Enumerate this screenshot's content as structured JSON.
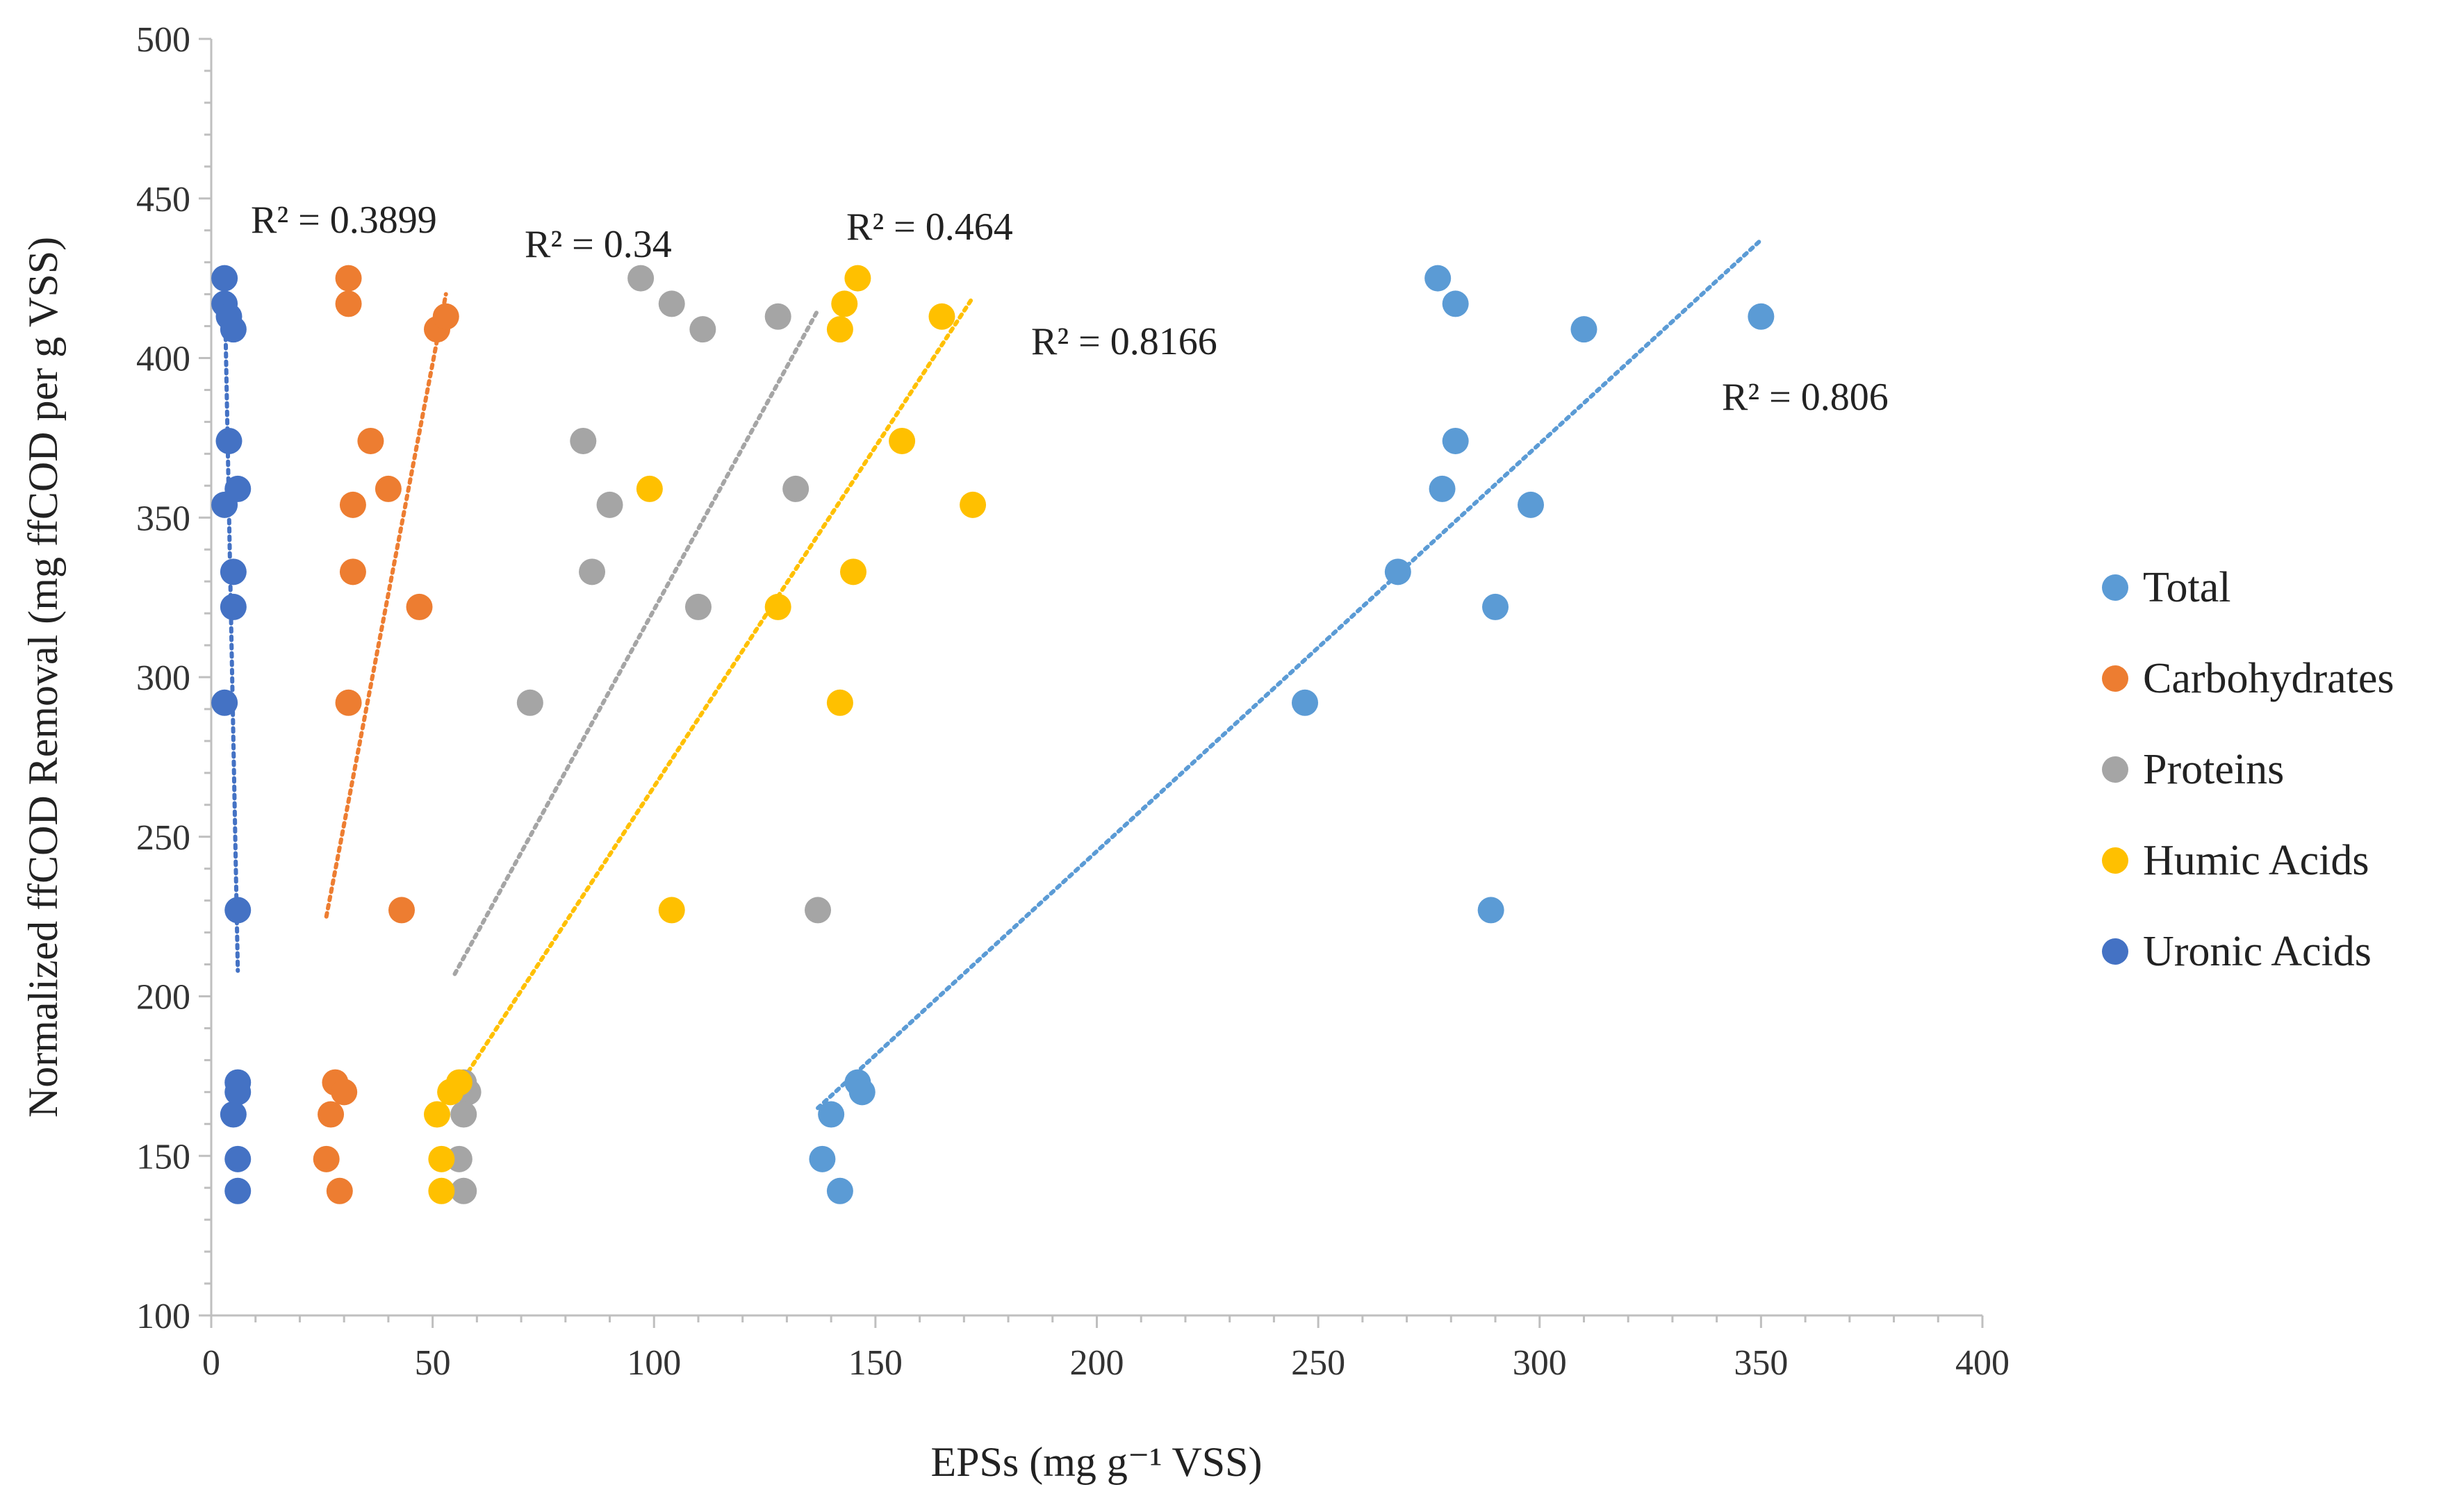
{
  "chart_data": {
    "type": "scatter",
    "title": "",
    "xlabel": "EPSs (mg g⁻¹ VSS)",
    "ylabel": "Normalized ffCOD Removal (mg ffCOD per g VSS)",
    "xlim": [
      0,
      400
    ],
    "ylim": [
      100,
      500
    ],
    "xticks": [
      "0",
      "50",
      "100",
      "150",
      "200",
      "250",
      "300",
      "350",
      "400"
    ],
    "yticks": [
      "100",
      "150",
      "200",
      "250",
      "300",
      "350",
      "400",
      "450",
      "500"
    ],
    "grid": false,
    "legend_position": "right",
    "y_values": [
      425,
      417,
      409,
      413,
      374,
      359,
      354,
      333,
      322,
      292,
      227,
      173,
      170,
      163,
      149,
      139
    ],
    "series": [
      {
        "name": "Total",
        "color": "#5B9BD5",
        "x": [
          277,
          281,
          310,
          350,
          281,
          278,
          298,
          268,
          290,
          247,
          289,
          146,
          147,
          140,
          138,
          142
        ],
        "trendline": {
          "x": [
            137,
            350
          ],
          "y": [
            165,
            437
          ],
          "r2_label": "R² = 0.806"
        }
      },
      {
        "name": "Carbohydrates",
        "color": "#ED7D31",
        "x": [
          31,
          31,
          51,
          53,
          36,
          40,
          32,
          32,
          47,
          31,
          43,
          28,
          30,
          27,
          26,
          29
        ],
        "trendline": {
          "x": [
            26,
            53
          ],
          "y": [
            225,
            420
          ],
          "r2_label": "R² = 0.34"
        }
      },
      {
        "name": "Proteins",
        "color": "#A5A5A5",
        "x": [
          97,
          104,
          111,
          128,
          84,
          132,
          90,
          86,
          110,
          72,
          137,
          57,
          58,
          57,
          56,
          57
        ],
        "trendline": {
          "x": [
            55,
            137
          ],
          "y": [
            207,
            415
          ],
          "r2_label": "R² = 0.464"
        }
      },
      {
        "name": "Humic Acids",
        "color": "#FFC000",
        "x": [
          146,
          143,
          142,
          165,
          156,
          99,
          172,
          145,
          128,
          142,
          104,
          56,
          54,
          51,
          52,
          52
        ],
        "trendline": {
          "x": [
            56,
            172
          ],
          "y": [
            172,
            419
          ],
          "r2_label": "R² = 0.8166"
        }
      },
      {
        "name": "Uronic Acids",
        "color": "#4472C4",
        "x": [
          3,
          3,
          5,
          4,
          4,
          6,
          3,
          5,
          5,
          3,
          6,
          6,
          6,
          5,
          6,
          6
        ],
        "trendline": {
          "x": [
            3,
            6
          ],
          "y": [
            425,
            208
          ],
          "r2_label": "R² = 0.3899"
        }
      }
    ]
  }
}
